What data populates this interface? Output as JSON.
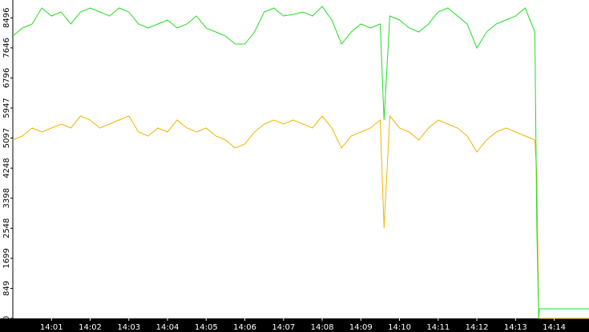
{
  "chart_data": {
    "type": "line",
    "x": [
      840,
      840.25,
      840.5,
      840.75,
      841,
      841.25,
      841.5,
      841.75,
      842,
      842.25,
      842.5,
      842.75,
      843,
      843.25,
      843.5,
      843.75,
      844,
      844.25,
      844.5,
      844.75,
      845,
      845.25,
      845.5,
      845.75,
      846,
      846.25,
      846.5,
      846.75,
      847,
      847.25,
      847.5,
      847.75,
      848,
      848.25,
      848.5,
      848.75,
      849,
      849.25,
      849.5,
      849.6,
      849.75,
      850,
      850.25,
      850.5,
      850.75,
      851,
      851.25,
      851.5,
      851.75,
      852,
      852.25,
      852.5,
      852.75,
      853,
      853.25,
      853.5,
      853.55,
      853.6,
      853.62,
      854.9
    ],
    "series": [
      {
        "color": "#22dd22",
        "values": [
          7982,
          8209,
          8322,
          8774,
          8548,
          8661,
          8322,
          8661,
          8774,
          8661,
          8548,
          8774,
          8661,
          8322,
          8209,
          8322,
          8435,
          8209,
          8322,
          8548,
          8209,
          8095,
          7982,
          7756,
          7756,
          8095,
          8661,
          8774,
          8548,
          8593,
          8661,
          8548,
          8819,
          8435,
          7756,
          8095,
          8322,
          8209,
          8322,
          5608,
          8548,
          8435,
          8209,
          8095,
          8322,
          8661,
          8774,
          8548,
          8322,
          7643,
          8095,
          8322,
          8435,
          8548,
          8774,
          8095,
          2555,
          0,
          271,
          271
        ]
      },
      {
        "color": "#f0b400",
        "values": [
          5043,
          5156,
          5382,
          5269,
          5382,
          5495,
          5382,
          5721,
          5608,
          5382,
          5495,
          5608,
          5721,
          5269,
          5156,
          5382,
          5269,
          5608,
          5382,
          5269,
          5382,
          5156,
          5043,
          4816,
          4930,
          5269,
          5495,
          5608,
          5495,
          5608,
          5495,
          5382,
          5721,
          5382,
          4816,
          5156,
          5269,
          5382,
          5608,
          2555,
          5721,
          5382,
          5269,
          5043,
          5382,
          5608,
          5495,
          5382,
          5156,
          4703,
          5043,
          5269,
          5382,
          5269,
          5156,
          5043,
          4070,
          0,
          0,
          0
        ]
      }
    ],
    "xlim": [
      840,
      854.9
    ],
    "xticks": [
      {
        "value": 841,
        "label": "14:01"
      },
      {
        "value": 842,
        "label": "14:02"
      },
      {
        "value": 843,
        "label": "14:03"
      },
      {
        "value": 844,
        "label": "14:04"
      },
      {
        "value": 845,
        "label": "14:05"
      },
      {
        "value": 846,
        "label": "14:06"
      },
      {
        "value": 847,
        "label": "14:07"
      },
      {
        "value": 848,
        "label": "14:08"
      },
      {
        "value": 849,
        "label": "14:09"
      },
      {
        "value": 850,
        "label": "14:10"
      },
      {
        "value": 851,
        "label": "14:11"
      },
      {
        "value": 852,
        "label": "14:12"
      },
      {
        "value": 853,
        "label": "14:13"
      },
      {
        "value": 854,
        "label": "14:14"
      }
    ],
    "ylim": [
      0,
      9000
    ],
    "yticks": [
      0,
      849,
      1699,
      2548,
      3398,
      4248,
      5097,
      5947,
      6796,
      7646,
      8496
    ]
  }
}
